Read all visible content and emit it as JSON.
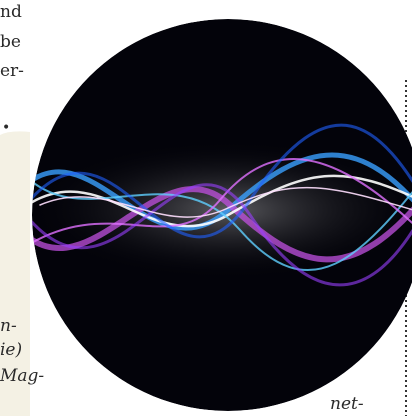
{
  "body_text": {
    "lines": [
      "nd",
      "be",
      "er-"
    ],
    "bullet": "•"
  },
  "sidebar_text": {
    "lines": [
      "n-",
      "ie)",
      "Mag-"
    ]
  },
  "caption_fragment": "net-"
}
